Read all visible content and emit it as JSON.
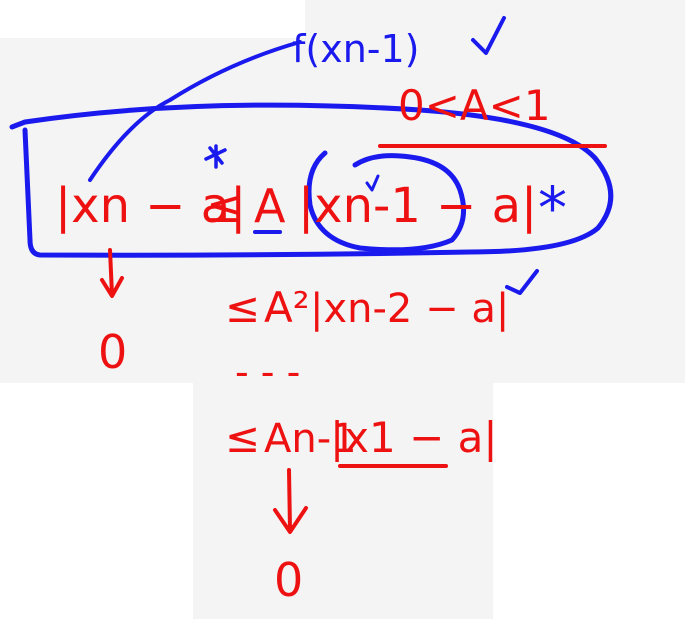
{
  "colors": {
    "background": "#ffffff",
    "panel": "#f4f4f4",
    "red_ink": "#ee1111",
    "blue_ink": "#1a1aee"
  },
  "notes": {
    "blue_label": "f(xn-1)",
    "checkmark": "✓",
    "condition": "0<A<1",
    "main_inequality": {
      "lhs": "|xn − a|",
      "le": "≤",
      "coefficient": "A",
      "rhs": "|xn-1 − a|",
      "star": "*"
    },
    "step2": {
      "le": "≤",
      "coefficient": "A²",
      "rhs": "|xn-2 − a|"
    },
    "dots": "- - -",
    "step_last": {
      "le": "≤",
      "coefficient": "An-1",
      "rhs": "|x1 − a|"
    },
    "limit_left": "0",
    "limit_bottom": "0"
  }
}
